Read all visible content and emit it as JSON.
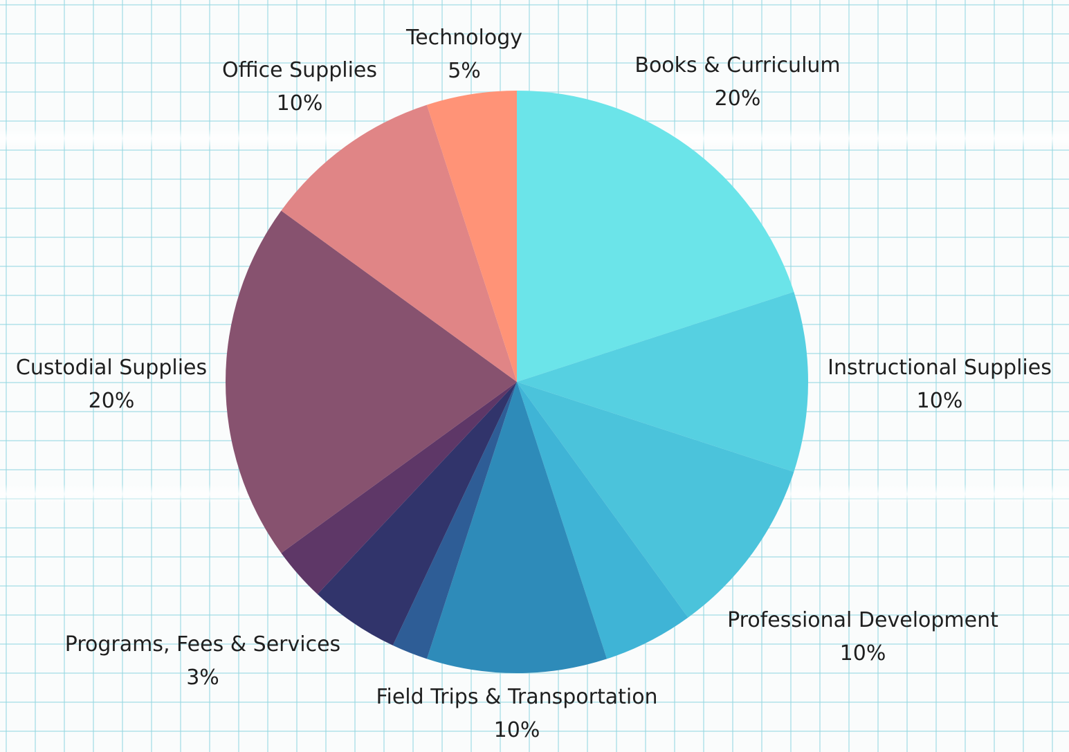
{
  "chart_data": {
    "type": "pie",
    "start_angle_deg": 0,
    "direction": "clockwise",
    "slices": [
      {
        "label": "Books & Curriculum",
        "value_label": "20%",
        "value": 20,
        "color": "#6be4e9",
        "labeled": true
      },
      {
        "label": "Instructional Supplies",
        "value_label": "10%",
        "value": 10,
        "color": "#56d0e1",
        "labeled": true
      },
      {
        "label": "Professional Development",
        "value_label": "10%",
        "value": 10,
        "color": "#4bc3db",
        "labeled": true
      },
      {
        "label": "",
        "value_label": "",
        "value": 5,
        "color": "#3fb4d6",
        "labeled": false
      },
      {
        "label": "Field Trips & Transportation",
        "value_label": "10%",
        "value": 10,
        "color": "#2e8bb9",
        "labeled": true
      },
      {
        "label": "",
        "value_label": "",
        "value": 2,
        "color": "#2e5d96",
        "labeled": false
      },
      {
        "label": "",
        "value_label": "",
        "value": 5,
        "color": "#31346b",
        "labeled": false
      },
      {
        "label": "Programs, Fees & Services",
        "value_label": "3%",
        "value": 3,
        "color": "#5e3767",
        "labeled": true
      },
      {
        "label": "Custodial Supplies",
        "value_label": "20%",
        "value": 20,
        "color": "#87526f",
        "labeled": true
      },
      {
        "label": "Office Supplies",
        "value_label": "10%",
        "value": 10,
        "color": "#e08586",
        "labeled": true
      },
      {
        "label": "Technology",
        "value_label": "5%",
        "value": 5,
        "color": "#ff9377",
        "labeled": true
      }
    ]
  }
}
